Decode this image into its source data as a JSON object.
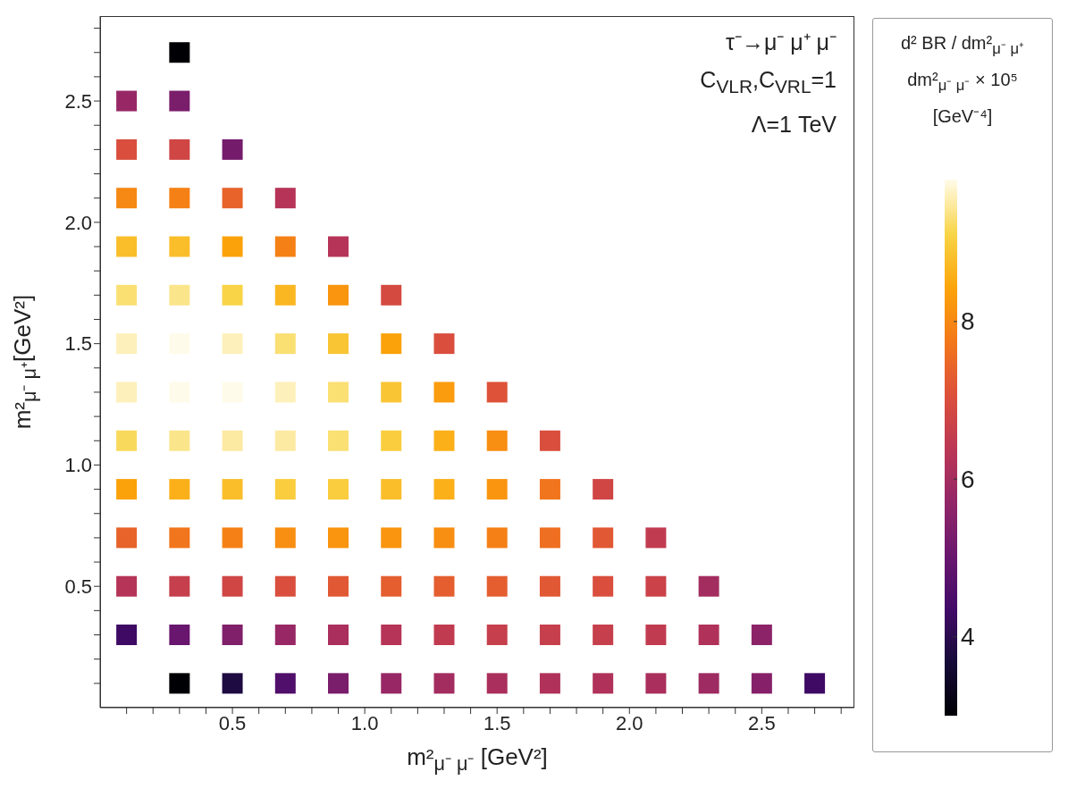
{
  "chart_data": {
    "type": "scatter",
    "marker": "square",
    "xlabel": "m²$_{μ⁻ μ⁻}$ [GeV²]",
    "ylabel": "m²$_{μ⁻ μ⁺}$[GeV²]",
    "clabel": "d² BR / dm²$_{μ⁻ μ⁺}$ dm²$_{μ⁻ μ⁻}$ × 10⁵ [GeV⁻⁴]",
    "annotations": [
      "τ⁻→μ⁻ μ⁺ μ⁻",
      "C$_{VLR}$,C$_{VRL}$=1",
      "Λ=1 TeV"
    ],
    "xlim": [
      0,
      2.85
    ],
    "ylim": [
      0,
      2.85
    ],
    "xticks": [
      {
        "value": 0.1,
        "label": null
      },
      {
        "value": 0.2,
        "label": null
      },
      {
        "value": 0.3,
        "label": null
      },
      {
        "value": 0.4,
        "label": null
      },
      {
        "value": 0.5,
        "label": "0.5"
      },
      {
        "value": 0.6,
        "label": null
      },
      {
        "value": 0.7,
        "label": null
      },
      {
        "value": 0.8,
        "label": null
      },
      {
        "value": 0.9,
        "label": null
      },
      {
        "value": 1.0,
        "label": "1.0"
      },
      {
        "value": 1.1,
        "label": null
      },
      {
        "value": 1.2,
        "label": null
      },
      {
        "value": 1.3,
        "label": null
      },
      {
        "value": 1.4,
        "label": null
      },
      {
        "value": 1.5,
        "label": "1.5"
      },
      {
        "value": 1.6,
        "label": null
      },
      {
        "value": 1.7,
        "label": null
      },
      {
        "value": 1.8,
        "label": null
      },
      {
        "value": 1.9,
        "label": null
      },
      {
        "value": 2.0,
        "label": "2.0"
      },
      {
        "value": 2.1,
        "label": null
      },
      {
        "value": 2.2,
        "label": null
      },
      {
        "value": 2.3,
        "label": null
      },
      {
        "value": 2.4,
        "label": null
      },
      {
        "value": 2.5,
        "label": "2.5"
      },
      {
        "value": 2.6,
        "label": null
      },
      {
        "value": 2.7,
        "label": null
      },
      {
        "value": 2.8,
        "label": null
      }
    ],
    "yticks": [
      {
        "value": 0.1,
        "label": null
      },
      {
        "value": 0.2,
        "label": null
      },
      {
        "value": 0.3,
        "label": null
      },
      {
        "value": 0.4,
        "label": null
      },
      {
        "value": 0.5,
        "label": "0.5"
      },
      {
        "value": 0.6,
        "label": null
      },
      {
        "value": 0.7,
        "label": null
      },
      {
        "value": 0.8,
        "label": null
      },
      {
        "value": 0.9,
        "label": null
      },
      {
        "value": 1.0,
        "label": "1.0"
      },
      {
        "value": 1.1,
        "label": null
      },
      {
        "value": 1.2,
        "label": null
      },
      {
        "value": 1.3,
        "label": null
      },
      {
        "value": 1.4,
        "label": null
      },
      {
        "value": 1.5,
        "label": "1.5"
      },
      {
        "value": 1.6,
        "label": null
      },
      {
        "value": 1.7,
        "label": null
      },
      {
        "value": 1.8,
        "label": null
      },
      {
        "value": 1.9,
        "label": null
      },
      {
        "value": 2.0,
        "label": "2.0"
      },
      {
        "value": 2.1,
        "label": null
      },
      {
        "value": 2.2,
        "label": null
      },
      {
        "value": 2.3,
        "label": null
      },
      {
        "value": 2.4,
        "label": null
      },
      {
        "value": 2.5,
        "label": "2.5"
      },
      {
        "value": 2.6,
        "label": null
      },
      {
        "value": 2.7,
        "label": null
      },
      {
        "value": 2.8,
        "label": null
      }
    ],
    "clim": [
      3.0,
      9.8
    ],
    "cticks": [
      4,
      6,
      8
    ],
    "x": [
      0.1,
      0.1,
      0.1,
      0.1,
      0.1,
      0.1,
      0.1,
      0.1,
      0.1,
      0.1,
      0.1,
      0.1,
      0.3,
      0.3,
      0.3,
      0.3,
      0.3,
      0.3,
      0.3,
      0.3,
      0.3,
      0.3,
      0.3,
      0.3,
      0.3,
      0.3,
      0.5,
      0.5,
      0.5,
      0.5,
      0.5,
      0.5,
      0.5,
      0.5,
      0.5,
      0.5,
      0.5,
      0.5,
      0.7,
      0.7,
      0.7,
      0.7,
      0.7,
      0.7,
      0.7,
      0.7,
      0.7,
      0.7,
      0.7,
      0.9,
      0.9,
      0.9,
      0.9,
      0.9,
      0.9,
      0.9,
      0.9,
      0.9,
      0.9,
      1.1,
      1.1,
      1.1,
      1.1,
      1.1,
      1.1,
      1.1,
      1.1,
      1.1,
      1.3,
      1.3,
      1.3,
      1.3,
      1.3,
      1.3,
      1.3,
      1.3,
      1.5,
      1.5,
      1.5,
      1.5,
      1.5,
      1.5,
      1.5,
      1.7,
      1.7,
      1.7,
      1.7,
      1.7,
      1.7,
      1.9,
      1.9,
      1.9,
      1.9,
      1.9,
      2.1,
      2.1,
      2.1,
      2.1,
      2.3,
      2.3,
      2.3,
      2.5,
      2.5,
      2.7
    ],
    "values": [
      0.3,
      0.5,
      0.7,
      0.9,
      1.1,
      1.3,
      1.5,
      1.7,
      1.9,
      2.1,
      2.3,
      2.5,
      0.1,
      0.3,
      0.5,
      0.7,
      0.9,
      1.1,
      1.3,
      1.5,
      1.7,
      1.9,
      2.1,
      2.3,
      2.5,
      2.7,
      0.1,
      0.3,
      0.5,
      0.7,
      0.9,
      1.1,
      1.3,
      1.5,
      1.7,
      1.9,
      2.1,
      2.3,
      0.1,
      0.3,
      0.5,
      0.7,
      0.9,
      1.1,
      1.3,
      1.5,
      1.7,
      1.9,
      2.1,
      0.1,
      0.3,
      0.5,
      0.7,
      0.9,
      1.1,
      1.3,
      1.5,
      1.7,
      1.9,
      0.1,
      0.3,
      0.5,
      0.7,
      0.9,
      1.1,
      1.3,
      1.5,
      1.7,
      0.1,
      0.3,
      0.5,
      0.7,
      0.9,
      1.1,
      1.3,
      1.5,
      0.1,
      0.3,
      0.5,
      0.7,
      0.9,
      1.1,
      1.3,
      0.1,
      0.3,
      0.5,
      0.7,
      0.9,
      1.1,
      0.1,
      0.3,
      0.5,
      0.7,
      0.9,
      0.1,
      0.3,
      0.5,
      0.7,
      0.1,
      0.3,
      0.5,
      0.1,
      0.3,
      0.1
    ],
    "cvalues": [
      4.3,
      6.3,
      7.4,
      8.4,
      9.2,
      9.6,
      9.6,
      9.3,
      8.8,
      8.0,
      7.0,
      5.8,
      3.0,
      5.0,
      6.6,
      7.7,
      8.6,
      9.4,
      9.8,
      9.8,
      9.4,
      8.8,
      7.9,
      6.8,
      5.3,
      3.0,
      3.8,
      5.4,
      6.8,
      7.9,
      8.8,
      9.5,
      9.8,
      9.6,
      9.1,
      8.4,
      7.4,
      5.2,
      4.6,
      5.8,
      7.0,
      8.1,
      9.0,
      9.5,
      9.6,
      9.3,
      8.7,
      7.9,
      6.3,
      5.3,
      6.1,
      7.2,
      8.2,
      9.0,
      9.3,
      9.3,
      8.9,
      8.2,
      6.3,
      5.8,
      6.3,
      7.3,
      8.2,
      8.8,
      9.0,
      8.9,
      8.4,
      6.9,
      6.0,
      6.5,
      7.3,
      8.1,
      8.6,
      8.6,
      8.3,
      7.0,
      6.1,
      6.6,
      7.3,
      7.9,
      8.2,
      8.1,
      7.1,
      6.2,
      6.6,
      7.2,
      7.6,
      7.7,
      7.0,
      6.2,
      6.6,
      7.0,
      7.2,
      6.8,
      6.1,
      6.5,
      6.7,
      6.5,
      5.9,
      6.2,
      6.0,
      5.5,
      5.6,
      4.3
    ]
  }
}
